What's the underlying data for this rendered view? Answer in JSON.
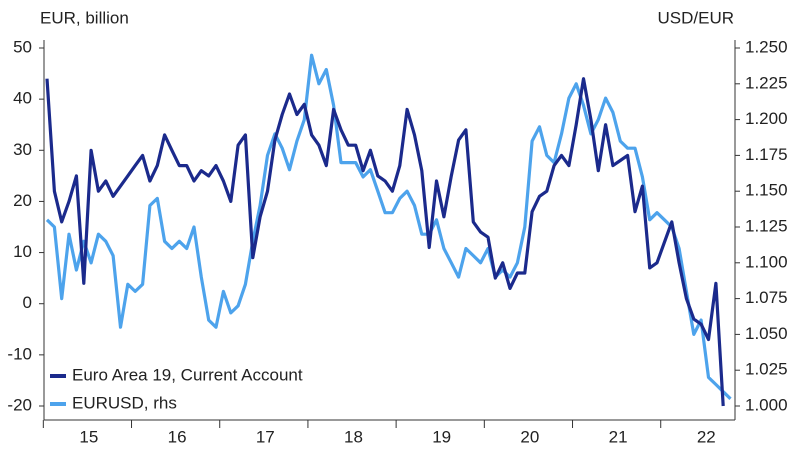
{
  "chart_data": {
    "type": "line",
    "y_label": "EUR, billion",
    "y2_label": "USD/EUR",
    "categories": [
      null,
      null,
      null,
      null,
      null,
      null,
      "15",
      null,
      null,
      null,
      null,
      null,
      null,
      null,
      null,
      null,
      null,
      null,
      "16",
      null,
      null,
      null,
      null,
      null,
      null,
      null,
      null,
      null,
      null,
      null,
      "17",
      null,
      null,
      null,
      null,
      null,
      null,
      null,
      null,
      null,
      null,
      null,
      "18",
      null,
      null,
      null,
      null,
      null,
      null,
      null,
      null,
      null,
      null,
      null,
      "19",
      null,
      null,
      null,
      null,
      null,
      null,
      null,
      null,
      null,
      null,
      null,
      "20",
      null,
      null,
      null,
      null,
      null,
      null,
      null,
      null,
      null,
      null,
      null,
      "21",
      null,
      null,
      null,
      null,
      null,
      null,
      null,
      null,
      null,
      null,
      null,
      "22",
      null,
      null,
      null
    ],
    "series": [
      {
        "name": "Euro Area 19, Current Account",
        "color": "#1b2a8c",
        "axis": "y",
        "values": [
          44,
          22,
          16,
          20,
          25,
          4,
          30,
          22,
          24,
          21,
          23,
          25,
          27,
          29,
          24,
          27,
          33,
          30,
          27,
          27,
          24,
          26,
          25,
          27,
          24,
          20,
          31,
          33,
          9,
          17,
          22,
          32,
          37,
          41,
          37,
          39,
          33,
          31,
          27,
          38,
          34,
          31,
          31,
          26,
          30,
          25,
          24,
          22,
          27,
          38,
          33,
          26,
          11,
          24,
          17,
          25,
          32,
          34,
          16,
          14,
          13,
          5,
          8,
          3,
          6,
          6,
          18,
          21,
          22,
          27,
          29,
          27,
          35,
          44,
          36,
          26,
          35,
          27,
          28,
          29,
          18,
          23,
          7,
          8,
          12,
          16,
          8,
          1,
          -3,
          -4,
          -7,
          4,
          -20,
          null
        ]
      },
      {
        "name": "EURUSD, rhs",
        "color": "#4da3ec",
        "axis": "y2",
        "values": [
          1.13,
          1.125,
          1.075,
          1.12,
          1.095,
          1.115,
          1.1,
          1.12,
          1.115,
          1.105,
          1.055,
          1.085,
          1.08,
          1.085,
          1.14,
          1.145,
          1.115,
          1.11,
          1.115,
          1.11,
          1.125,
          1.09,
          1.06,
          1.055,
          1.08,
          1.065,
          1.07,
          1.085,
          1.115,
          1.14,
          1.175,
          1.19,
          1.18,
          1.165,
          1.185,
          1.2,
          1.245,
          1.225,
          1.235,
          1.21,
          1.17,
          1.17,
          1.17,
          1.16,
          1.165,
          1.15,
          1.135,
          1.135,
          1.145,
          1.15,
          1.14,
          1.12,
          1.12,
          1.13,
          1.11,
          1.1,
          1.09,
          1.11,
          1.105,
          1.1,
          1.11,
          1.09,
          1.095,
          1.09,
          1.1,
          1.125,
          1.185,
          1.195,
          1.175,
          1.17,
          1.19,
          1.215,
          1.225,
          1.21,
          1.19,
          1.2,
          1.215,
          1.205,
          1.185,
          1.18,
          1.18,
          1.16,
          1.13,
          1.135,
          1.13,
          1.125,
          1.11,
          1.08,
          1.05,
          1.06,
          1.02,
          1.015,
          1.01,
          1.005
        ]
      }
    ],
    "ylim": [
      -20,
      50
    ],
    "yticks": [
      -20,
      -10,
      0,
      10,
      20,
      30,
      40,
      50
    ],
    "y2lim": [
      1.0,
      1.25
    ],
    "y2ticks": [
      {
        "value": 1.0,
        "label": "1.000"
      },
      {
        "value": 1.025,
        "label": "1.025"
      },
      {
        "value": 1.05,
        "label": "1.050"
      },
      {
        "value": 1.075,
        "label": "1.075"
      },
      {
        "value": 1.1,
        "label": "1.100"
      },
      {
        "value": 1.125,
        "label": "1.125"
      },
      {
        "value": 1.15,
        "label": "1.150"
      },
      {
        "value": 1.175,
        "label": "1.175"
      },
      {
        "value": 1.2,
        "label": "1.200"
      },
      {
        "value": 1.225,
        "label": "1.225"
      },
      {
        "value": 1.25,
        "label": "1.250"
      }
    ],
    "grid": false,
    "legend": "lower left"
  }
}
